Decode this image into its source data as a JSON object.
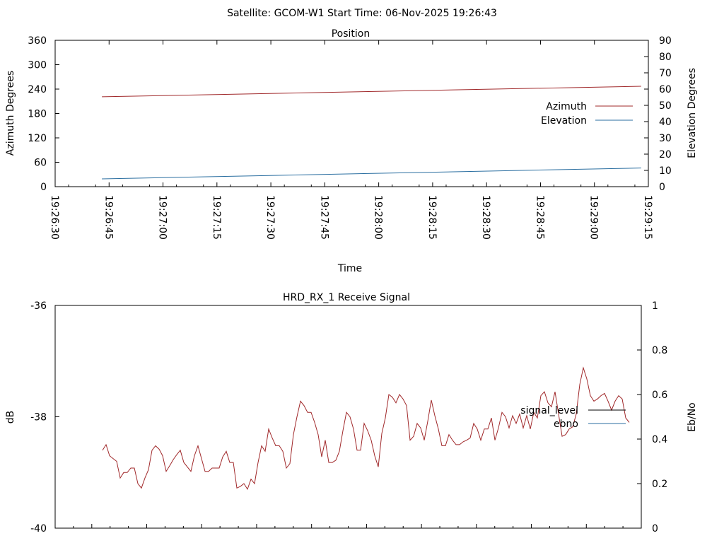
{
  "suptitle": "Satellite: GCOM-W1    Start Time: 06-Nov-2025 19:26:43",
  "chart_data": [
    {
      "type": "line",
      "title": "Position",
      "xlabel": "Time",
      "ylabel": "Azimuth Degrees",
      "y2label": "Elevation Degrees",
      "xticks": [
        "19:26:30",
        "19:26:45",
        "19:27:00",
        "19:27:15",
        "19:27:30",
        "19:27:45",
        "19:28:00",
        "19:28:15",
        "19:28:30",
        "19:28:45",
        "19:29:00",
        "19:29:15"
      ],
      "xlim_seconds": [
        0,
        165
      ],
      "ylim": [
        0,
        360
      ],
      "yticks": [
        "0",
        "60",
        "120",
        "180",
        "240",
        "300",
        "360"
      ],
      "y2lim": [
        0,
        90
      ],
      "y2ticks": [
        "0",
        "10",
        "20",
        "30",
        "40",
        "50",
        "60",
        "70",
        "80",
        "90"
      ],
      "legend_position": "right",
      "series": [
        {
          "name": "Azimuth",
          "axis": "left",
          "color": "#a0282a",
          "x": [
            "19:26:43",
            "19:29:13"
          ],
          "values": [
            221,
            247
          ]
        },
        {
          "name": "Elevation",
          "axis": "right",
          "color": "#2a6ea0",
          "x": [
            "19:26:43",
            "19:29:13"
          ],
          "values": [
            4.8,
            11.5
          ]
        }
      ]
    },
    {
      "type": "line",
      "title": "HRD_RX_1 Receive Signal",
      "ylabel": "dB",
      "y2label": "Eb/No",
      "ylim": [
        -40,
        -36
      ],
      "yticks": [
        "-40",
        "-38",
        "-36"
      ],
      "y2lim": [
        0,
        1
      ],
      "y2ticks": [
        "0",
        "0.2",
        "0.4",
        "0.6",
        "0.8",
        "1"
      ],
      "legend_position": "right",
      "series": [
        {
          "name": "signal_level",
          "axis": "left",
          "color": "#000000",
          "values": []
        },
        {
          "name": "ebno",
          "axis": "left",
          "color": "#2a6ea0",
          "values": []
        },
        {
          "name": "",
          "axis": "left",
          "color": "#a0282a",
          "values": [
            -38.6,
            -38.5,
            -38.7,
            -38.75,
            -38.8,
            -39.1,
            -39.0,
            -39.0,
            -38.92,
            -38.92,
            -39.2,
            -39.28,
            -39.1,
            -38.95,
            -38.6,
            -38.52,
            -38.58,
            -38.7,
            -38.98,
            -38.88,
            -38.77,
            -38.68,
            -38.6,
            -38.82,
            -38.9,
            -38.98,
            -38.7,
            -38.52,
            -38.75,
            -38.98,
            -38.98,
            -38.92,
            -38.92,
            -38.92,
            -38.72,
            -38.62,
            -38.82,
            -38.82,
            -39.28,
            -39.25,
            -39.2,
            -39.3,
            -39.12,
            -39.2,
            -38.82,
            -38.52,
            -38.62,
            -38.22,
            -38.38,
            -38.52,
            -38.52,
            -38.62,
            -38.92,
            -38.84,
            -38.32,
            -38.0,
            -37.72,
            -37.8,
            -37.92,
            -37.92,
            -38.1,
            -38.32,
            -38.72,
            -38.42,
            -38.82,
            -38.82,
            -38.78,
            -38.62,
            -38.25,
            -37.92,
            -38.0,
            -38.22,
            -38.6,
            -38.6,
            -38.12,
            -38.25,
            -38.42,
            -38.7,
            -38.9,
            -38.3,
            -38.02,
            -37.6,
            -37.65,
            -37.75,
            -37.6,
            -37.68,
            -37.8,
            -38.42,
            -38.35,
            -38.12,
            -38.2,
            -38.42,
            -38.08,
            -37.7,
            -37.98,
            -38.22,
            -38.52,
            -38.52,
            -38.32,
            -38.42,
            -38.5,
            -38.5,
            -38.45,
            -38.42,
            -38.38,
            -38.12,
            -38.22,
            -38.42,
            -38.22,
            -38.22,
            -38.02,
            -38.42,
            -38.2,
            -37.92,
            -38.0,
            -38.2,
            -37.98,
            -38.12,
            -37.95,
            -38.2,
            -37.98,
            -38.22,
            -37.92,
            -38.02,
            -37.62,
            -37.55,
            -37.75,
            -37.82,
            -37.55,
            -37.95,
            -38.35,
            -38.32,
            -38.22,
            -38.18,
            -37.95,
            -37.42,
            -37.12,
            -37.32,
            -37.62,
            -37.72,
            -37.68,
            -37.62,
            -37.58,
            -37.72,
            -37.88,
            -37.72,
            -37.62,
            -37.68,
            -38.02,
            -38.1
          ]
        }
      ]
    }
  ]
}
